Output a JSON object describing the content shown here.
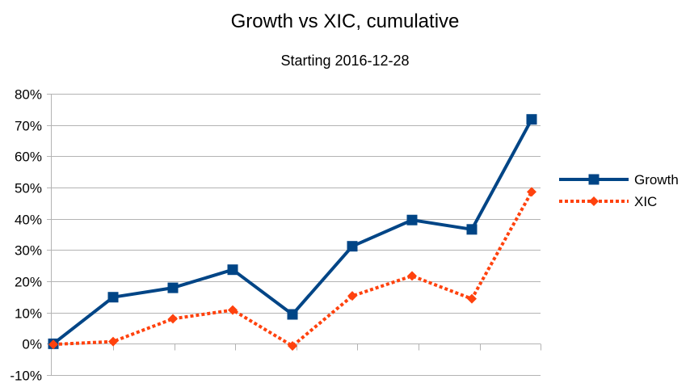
{
  "chart_data": {
    "type": "line",
    "title": "Growth vs XIC, cumulative",
    "subtitle": "Starting 2016-12-28",
    "xlabel": "",
    "ylabel": "",
    "ylim": [
      -0.1,
      0.8
    ],
    "y_ticks": [
      -0.1,
      0.0,
      0.1,
      0.2,
      0.3,
      0.4,
      0.5,
      0.6,
      0.7,
      0.8
    ],
    "y_tick_labels": [
      "-10%",
      "0%",
      "10%",
      "20%",
      "30%",
      "40%",
      "50%",
      "60%",
      "70%",
      "80%"
    ],
    "categories": [
      "",
      "",
      "",
      "",
      "",
      "",
      "",
      "",
      ""
    ],
    "grid": "horizontal",
    "legend_position": "right",
    "series": [
      {
        "name": "Growth",
        "color": "#004586",
        "line_style": "solid",
        "marker": "square",
        "values": [
          0.0,
          0.149,
          0.179,
          0.237,
          0.094,
          0.312,
          0.396,
          0.366,
          0.718
        ]
      },
      {
        "name": "XIC",
        "color": "#ff420e",
        "line_style": "dotted",
        "marker": "diamond",
        "values": [
          -0.002,
          0.007,
          0.08,
          0.108,
          -0.007,
          0.153,
          0.217,
          0.144,
          0.486
        ]
      }
    ]
  }
}
